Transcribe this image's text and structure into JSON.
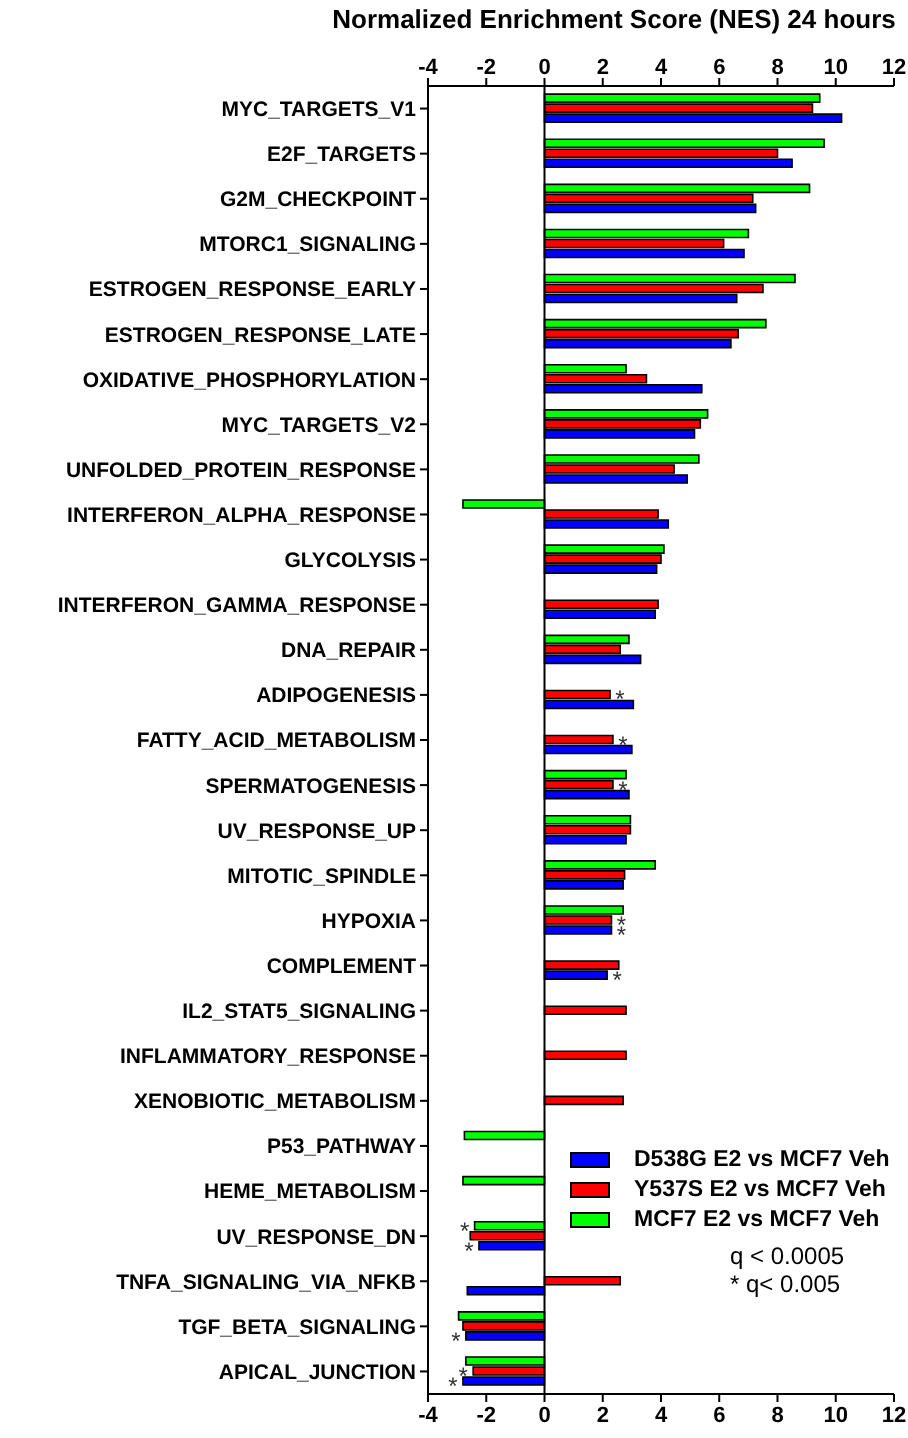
{
  "chart_data": {
    "type": "bar",
    "orientation": "horizontal",
    "title": "Normalized Enrichment Score (NES) 24 hours",
    "categories": [
      "MYC_TARGETS_V1",
      "E2F_TARGETS",
      "G2M_CHECKPOINT",
      "MTORC1_SIGNALING",
      "ESTROGEN_RESPONSE_EARLY",
      "ESTROGEN_RESPONSE_LATE",
      "OXIDATIVE_PHOSPHORYLATION",
      "MYC_TARGETS_V2",
      "UNFOLDED_PROTEIN_RESPONSE",
      "INTERFERON_ALPHA_RESPONSE",
      "GLYCOLYSIS",
      "INTERFERON_GAMMA_RESPONSE",
      "DNA_REPAIR",
      "ADIPOGENESIS",
      "FATTY_ACID_METABOLISM",
      "SPERMATOGENESIS",
      "UV_RESPONSE_UP",
      "MITOTIC_SPINDLE",
      "HYPOXIA",
      "COMPLEMENT",
      "IL2_STAT5_SIGNALING",
      "INFLAMMATORY_RESPONSE",
      "XENOBIOTIC_METABOLISM",
      "P53_PATHWAY",
      "HEME_METABOLISM",
      "UV_RESPONSE_DN",
      "TNFA_SIGNALING_VIA_NFKB",
      "TGF_BETA_SIGNALING",
      "APICAL_JUNCTION"
    ],
    "series": [
      {
        "name": "D538G E2 vs MCF7 Veh",
        "color": "#0000ff",
        "values": [
          10.2,
          8.5,
          7.25,
          6.85,
          6.6,
          6.4,
          5.4,
          5.15,
          4.9,
          4.25,
          3.85,
          3.8,
          3.3,
          3.05,
          3.0,
          2.9,
          2.8,
          2.7,
          2.3,
          2.15,
          null,
          null,
          null,
          null,
          null,
          -2.25,
          -2.65,
          -2.7,
          -2.8
        ],
        "value_labels": [
          null,
          null,
          null,
          null,
          null,
          null,
          null,
          null,
          null,
          null,
          null,
          null,
          null,
          null,
          null,
          null,
          null,
          null,
          "*",
          "*",
          null,
          null,
          null,
          null,
          null,
          "*",
          null,
          "*",
          "*"
        ]
      },
      {
        "name": "Y537S E2 vs MCF7 Veh",
        "color": "#ff0000",
        "values": [
          9.2,
          8.0,
          7.15,
          6.15,
          7.5,
          6.65,
          3.5,
          5.35,
          4.45,
          3.9,
          4.0,
          3.9,
          2.6,
          2.25,
          2.35,
          2.35,
          2.95,
          2.75,
          2.3,
          2.55,
          2.8,
          2.8,
          2.7,
          null,
          null,
          -2.55,
          2.6,
          -2.8,
          -2.45
        ],
        "value_labels": [
          null,
          null,
          null,
          null,
          null,
          null,
          null,
          null,
          null,
          null,
          null,
          null,
          null,
          "*",
          "*",
          "*",
          null,
          null,
          "*",
          null,
          null,
          null,
          null,
          null,
          null,
          null,
          null,
          null,
          "*"
        ]
      },
      {
        "name": "MCF7 E2 vs MCF7 Veh",
        "color": "#00ff00",
        "values": [
          9.45,
          9.6,
          9.1,
          7.0,
          8.6,
          7.6,
          2.8,
          5.6,
          5.3,
          -2.8,
          4.1,
          null,
          2.9,
          null,
          null,
          2.8,
          2.95,
          3.8,
          2.7,
          null,
          null,
          null,
          null,
          -2.75,
          -2.8,
          -2.4,
          null,
          -2.95,
          -2.7
        ],
        "value_labels": [
          null,
          null,
          null,
          null,
          null,
          null,
          null,
          null,
          null,
          null,
          null,
          null,
          null,
          null,
          null,
          null,
          null,
          null,
          null,
          null,
          null,
          null,
          null,
          null,
          null,
          "*",
          null,
          null,
          null
        ]
      }
    ],
    "xlim": [
      -4,
      12
    ],
    "xticks": [
      -4,
      -2,
      0,
      2,
      4,
      6,
      8,
      10,
      12
    ],
    "x2lim": [
      -4,
      12
    ],
    "x2ticks": [
      -4,
      -2,
      0,
      2,
      4,
      6,
      8,
      10,
      12
    ],
    "legend": "bottom right",
    "annotations": [
      "q < 0.0005",
      "* q< 0.005"
    ]
  }
}
